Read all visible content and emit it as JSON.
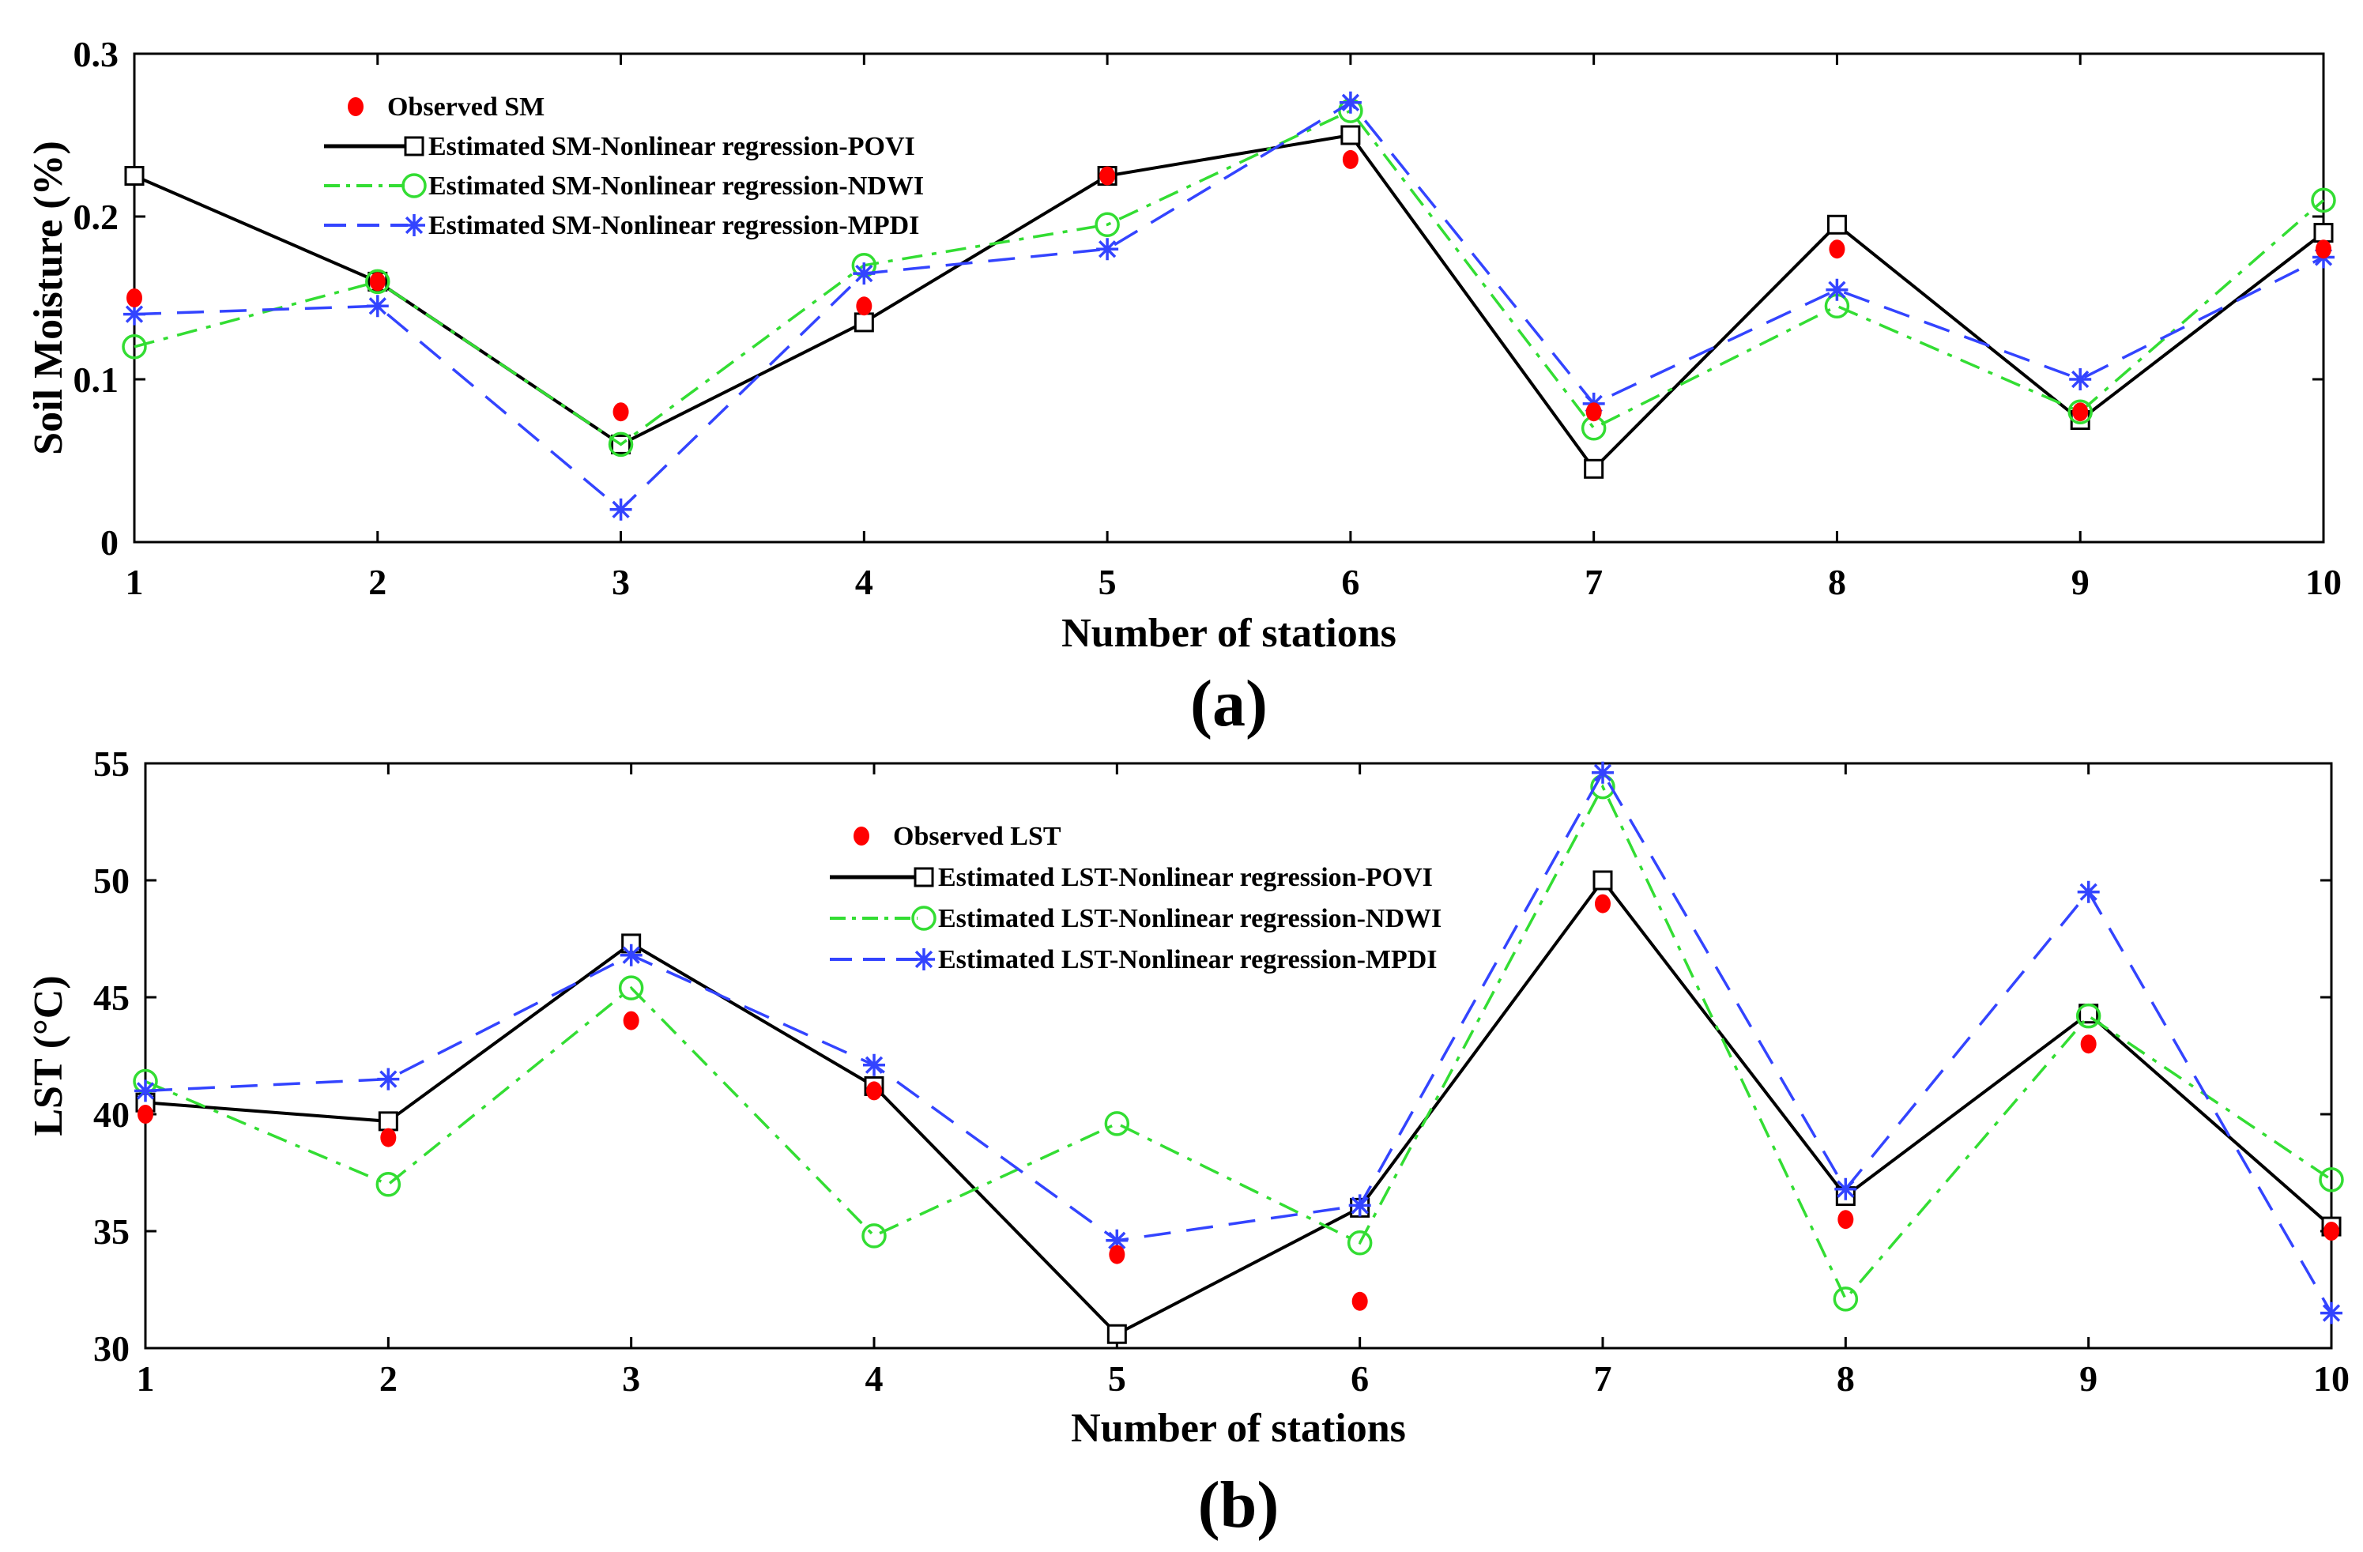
{
  "chart_data": [
    {
      "type": "line",
      "panel_label": "(a)",
      "xlabel": "Number of stations",
      "ylabel": "Soil Moisture (%)",
      "categories": [
        1,
        2,
        3,
        4,
        5,
        6,
        7,
        8,
        9,
        10
      ],
      "xlim": [
        1,
        10
      ],
      "ylim": [
        0,
        0.3
      ],
      "yticks": [
        0,
        0.1,
        0.2,
        0.3
      ],
      "ytick_labels": [
        "0",
        "0.1",
        "0.2",
        "0.3"
      ],
      "legend_position": "top-left",
      "series": [
        {
          "name": "Observed SM",
          "style": "markers",
          "marker": "filled-circle",
          "color": "#ff0000",
          "values": [
            0.15,
            0.16,
            0.08,
            0.145,
            0.225,
            0.235,
            0.08,
            0.18,
            0.08,
            0.18
          ]
        },
        {
          "name": "Estimated SM-Nonlinear regression-POVI",
          "style": "solid",
          "marker": "square",
          "color": "#000000",
          "values": [
            0.225,
            0.16,
            0.06,
            0.135,
            0.225,
            0.25,
            0.045,
            0.195,
            0.075,
            0.19
          ]
        },
        {
          "name": "Estimated SM-Nonlinear regression-NDWI",
          "style": "dashdot",
          "marker": "circle",
          "color": "#33dd33",
          "values": [
            0.12,
            0.16,
            0.06,
            0.17,
            0.195,
            0.265,
            0.07,
            0.145,
            0.08,
            0.21
          ]
        },
        {
          "name": "Estimated SM-Nonlinear regression-MPDI",
          "style": "dashed",
          "marker": "star",
          "color": "#3344ff",
          "values": [
            0.14,
            0.145,
            0.02,
            0.165,
            0.18,
            0.27,
            0.085,
            0.155,
            0.1,
            0.175
          ]
        }
      ]
    },
    {
      "type": "line",
      "panel_label": "(b)",
      "xlabel": "Number of stations",
      "ylabel": "LST (°C)",
      "categories": [
        1,
        2,
        3,
        4,
        5,
        6,
        7,
        8,
        9,
        10
      ],
      "xlim": [
        1,
        10
      ],
      "ylim": [
        30,
        55
      ],
      "yticks": [
        30,
        35,
        40,
        45,
        50,
        55
      ],
      "ytick_labels": [
        "30",
        "35",
        "40",
        "45",
        "50",
        "55"
      ],
      "legend_position": "top-left",
      "series": [
        {
          "name": "Observed LST",
          "style": "markers",
          "marker": "filled-circle",
          "color": "#ff0000",
          "values": [
            40,
            39,
            44,
            41,
            34,
            32,
            49,
            35.5,
            43,
            35
          ]
        },
        {
          "name": "Estimated LST-Nonlinear regression-POVI",
          "style": "solid",
          "marker": "square",
          "color": "#000000",
          "values": [
            40.5,
            39.7,
            47.3,
            41.2,
            30.6,
            36,
            50,
            36.5,
            44.3,
            35.2
          ]
        },
        {
          "name": "Estimated LST-Nonlinear regression-NDWI",
          "style": "dashdot",
          "marker": "circle",
          "color": "#33dd33",
          "values": [
            41.4,
            37,
            45.4,
            34.8,
            39.6,
            34.5,
            54,
            32.1,
            44.2,
            37.2
          ]
        },
        {
          "name": "Estimated LST-Nonlinear regression-MPDI",
          "style": "dashed",
          "marker": "star",
          "color": "#3344ff",
          "values": [
            41,
            41.5,
            46.8,
            42.1,
            34.6,
            36.1,
            54.6,
            36.8,
            49.5,
            31.5
          ]
        }
      ]
    }
  ]
}
